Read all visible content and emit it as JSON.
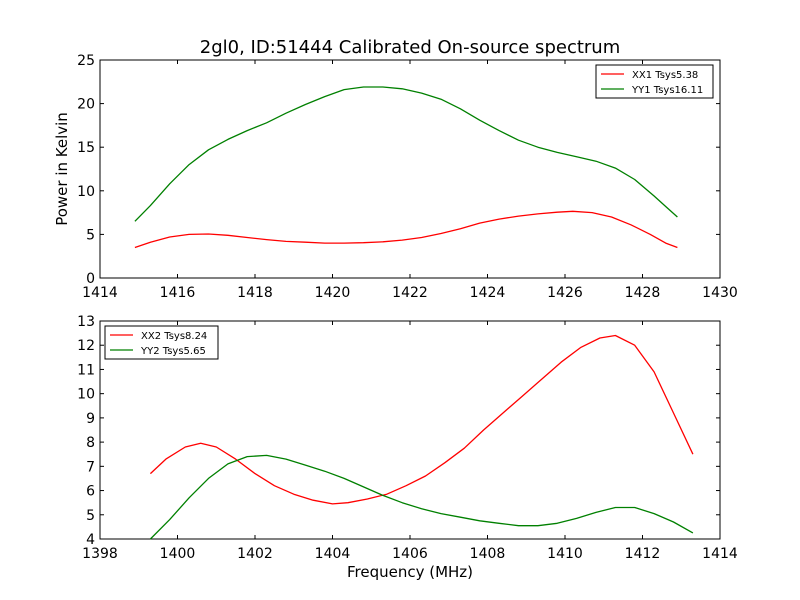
{
  "figure": {
    "title": "2gl0, ID:51444 Calibrated On-source spectrum",
    "ylabel": "Power in Kelvin",
    "xlabel": "Frequency (MHz)"
  },
  "colors": {
    "red": "#ff0000",
    "green": "#008000",
    "frame": "#000000"
  },
  "chart_data": [
    {
      "type": "line",
      "title": "2gl0, ID:51444 Calibrated On-source spectrum",
      "ylabel": "Power in Kelvin",
      "xlabel": "",
      "xlim": [
        1414,
        1430
      ],
      "ylim": [
        0,
        25
      ],
      "xticks": [
        1414,
        1416,
        1418,
        1420,
        1422,
        1424,
        1426,
        1428,
        1430
      ],
      "yticks": [
        0,
        5,
        10,
        15,
        20,
        25
      ],
      "legend": "top-right",
      "grid": false,
      "series": [
        {
          "name": "XX1 Tsys5.38",
          "color": "#ff0000",
          "x": [
            1414.9,
            1415.3,
            1415.8,
            1416.3,
            1416.8,
            1417.3,
            1417.8,
            1418.3,
            1418.8,
            1419.3,
            1419.8,
            1420.3,
            1420.8,
            1421.3,
            1421.8,
            1422.3,
            1422.8,
            1423.3,
            1423.8,
            1424.3,
            1424.8,
            1425.3,
            1425.8,
            1426.2,
            1426.7,
            1427.2,
            1427.7,
            1428.2,
            1428.6,
            1428.9
          ],
          "y": [
            3.5,
            4.1,
            4.7,
            5.0,
            5.05,
            4.9,
            4.65,
            4.4,
            4.2,
            4.1,
            4.0,
            4.0,
            4.05,
            4.15,
            4.35,
            4.65,
            5.1,
            5.65,
            6.3,
            6.75,
            7.1,
            7.35,
            7.55,
            7.65,
            7.5,
            7.0,
            6.1,
            5.0,
            4.0,
            3.5
          ]
        },
        {
          "name": "YY1 Tsys16.11",
          "color": "#008000",
          "x": [
            1414.9,
            1415.3,
            1415.8,
            1416.3,
            1416.8,
            1417.3,
            1417.8,
            1418.3,
            1418.8,
            1419.3,
            1419.8,
            1420.3,
            1420.8,
            1421.3,
            1421.8,
            1422.3,
            1422.8,
            1423.3,
            1423.8,
            1424.3,
            1424.8,
            1425.3,
            1425.8,
            1426.3,
            1426.8,
            1427.3,
            1427.8,
            1428.3,
            1428.6,
            1428.9
          ],
          "y": [
            6.5,
            8.3,
            10.8,
            13.0,
            14.7,
            15.9,
            16.9,
            17.8,
            18.9,
            19.9,
            20.8,
            21.6,
            21.9,
            21.9,
            21.7,
            21.2,
            20.5,
            19.4,
            18.1,
            16.9,
            15.8,
            15.0,
            14.4,
            13.9,
            13.4,
            12.6,
            11.3,
            9.4,
            8.2,
            7.0
          ]
        }
      ]
    },
    {
      "type": "line",
      "title": "",
      "xlabel": "Frequency (MHz)",
      "ylabel": "",
      "xlim": [
        1398,
        1414
      ],
      "ylim": [
        4,
        13
      ],
      "xticks": [
        1398,
        1400,
        1402,
        1404,
        1406,
        1408,
        1410,
        1412,
        1414
      ],
      "yticks": [
        4,
        5,
        6,
        7,
        8,
        9,
        10,
        11,
        12,
        13
      ],
      "legend": "top-left",
      "grid": false,
      "series": [
        {
          "name": "XX2 Tsys8.24",
          "color": "#ff0000",
          "x": [
            1399.3,
            1399.7,
            1400.2,
            1400.6,
            1401.0,
            1401.5,
            1402.0,
            1402.5,
            1403.0,
            1403.5,
            1404.0,
            1404.4,
            1404.9,
            1405.4,
            1405.9,
            1406.4,
            1406.9,
            1407.4,
            1407.9,
            1408.4,
            1408.9,
            1409.4,
            1409.9,
            1410.4,
            1410.9,
            1411.3,
            1411.8,
            1412.3,
            1412.8,
            1413.3
          ],
          "y": [
            6.7,
            7.3,
            7.8,
            7.95,
            7.8,
            7.3,
            6.7,
            6.2,
            5.85,
            5.6,
            5.45,
            5.5,
            5.65,
            5.85,
            6.2,
            6.6,
            7.15,
            7.75,
            8.5,
            9.2,
            9.9,
            10.6,
            11.3,
            11.9,
            12.3,
            12.4,
            12.0,
            10.9,
            9.2,
            7.5
          ]
        },
        {
          "name": "YY2 Tsys5.65",
          "color": "#008000",
          "x": [
            1399.3,
            1399.8,
            1400.3,
            1400.8,
            1401.3,
            1401.8,
            1402.3,
            1402.8,
            1403.3,
            1403.8,
            1404.3,
            1404.8,
            1405.3,
            1405.8,
            1406.3,
            1406.8,
            1407.3,
            1407.8,
            1408.3,
            1408.8,
            1409.3,
            1409.8,
            1410.3,
            1410.8,
            1411.3,
            1411.8,
            1412.3,
            1412.8,
            1413.3
          ],
          "y": [
            4.0,
            4.8,
            5.7,
            6.5,
            7.1,
            7.4,
            7.45,
            7.3,
            7.05,
            6.8,
            6.5,
            6.15,
            5.8,
            5.5,
            5.25,
            5.05,
            4.9,
            4.75,
            4.65,
            4.55,
            4.55,
            4.65,
            4.85,
            5.1,
            5.3,
            5.3,
            5.05,
            4.7,
            4.25
          ]
        }
      ]
    }
  ]
}
